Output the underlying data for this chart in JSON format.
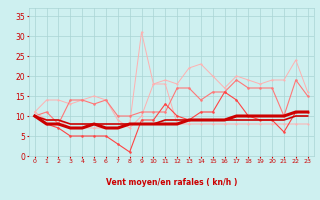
{
  "x": [
    0,
    1,
    2,
    3,
    4,
    5,
    6,
    7,
    8,
    9,
    10,
    11,
    12,
    13,
    14,
    15,
    16,
    17,
    18,
    19,
    20,
    21,
    22,
    23
  ],
  "series_light1": [
    11,
    9,
    9,
    7,
    7,
    7,
    7,
    7,
    8,
    31,
    18,
    18,
    8,
    8,
    8,
    8,
    8,
    8,
    8,
    8,
    8,
    8,
    8,
    8
  ],
  "series_light2": [
    11,
    14,
    14,
    13,
    14,
    15,
    14,
    9,
    7,
    10,
    18,
    19,
    18,
    22,
    23,
    20,
    17,
    20,
    19,
    18,
    19,
    19,
    24,
    16
  ],
  "series_med1": [
    10,
    11,
    8,
    14,
    14,
    13,
    14,
    10,
    10,
    11,
    11,
    11,
    17,
    17,
    14,
    16,
    16,
    19,
    17,
    17,
    17,
    10,
    19,
    15
  ],
  "series_med2": [
    10,
    8,
    7,
    5,
    5,
    5,
    5,
    3,
    1,
    9,
    9,
    13,
    10,
    9,
    11,
    11,
    16,
    14,
    10,
    9,
    9,
    6,
    11,
    11
  ],
  "series_dark1": [
    10,
    8,
    8,
    7,
    7,
    8,
    7,
    7,
    8,
    8,
    8,
    8,
    8,
    9,
    9,
    9,
    9,
    10,
    10,
    10,
    10,
    10,
    11,
    11
  ],
  "series_dark2": [
    10,
    9,
    9,
    8,
    8,
    8,
    8,
    8,
    8,
    8,
    8,
    9,
    9,
    9,
    9,
    9,
    9,
    9,
    9,
    9,
    9,
    9,
    10,
    10
  ],
  "bg_color": "#cef0f0",
  "grid_color": "#aad4d4",
  "color_light1": "#ffb0b0",
  "color_light2": "#ffb0b0",
  "color_med1": "#ff7777",
  "color_med2": "#ff4444",
  "color_dark": "#cc0000",
  "xlabel": "Vent moyen/en rafales ( kn/h )",
  "xlabel_color": "#cc0000",
  "yticks": [
    0,
    5,
    10,
    15,
    20,
    25,
    30,
    35
  ],
  "ylim": [
    0,
    37
  ],
  "xlim": [
    -0.5,
    23.5
  ],
  "arrows": [
    "→",
    "→",
    "→",
    "↑",
    "→",
    "↗",
    "→",
    "→",
    "↙",
    "↑",
    "↖",
    "↑",
    "↑",
    "→",
    "↘",
    "↘",
    "↘",
    "↘",
    "↘",
    "↘",
    "↓",
    "↓",
    "↙",
    "↘"
  ]
}
